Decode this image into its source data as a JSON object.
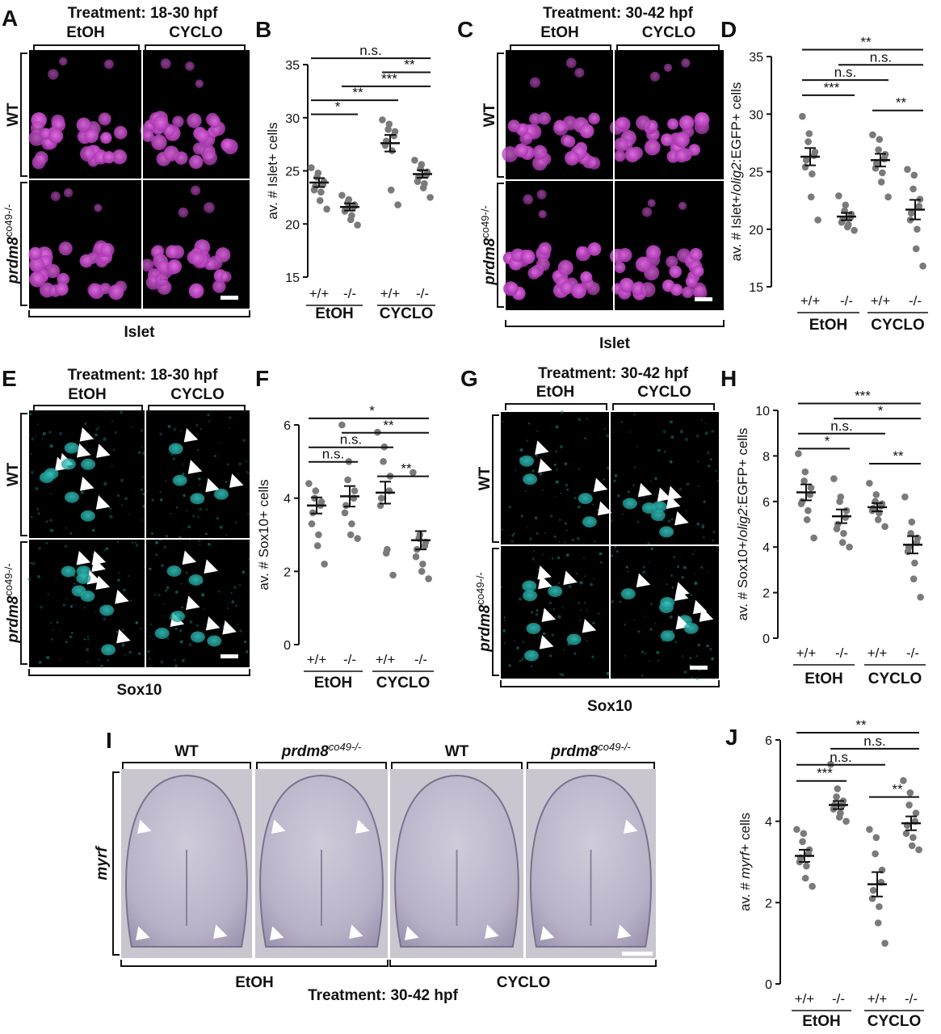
{
  "panel_letters": [
    "A",
    "B",
    "C",
    "D",
    "E",
    "F",
    "G",
    "H",
    "I",
    "J"
  ],
  "imaging": {
    "A": {
      "treatment": "Treatment: 18-30 hpf",
      "col1": "EtOH",
      "col2": "CYCLO",
      "row1": "WT",
      "row2": "prdm8",
      "row2_sup": "co49-/-",
      "stain": "Islet"
    },
    "C": {
      "treatment": "Treatment: 30-42 hpf",
      "col1": "EtOH",
      "col2": "CYCLO",
      "row1": "WT",
      "row2": "prdm8",
      "row2_sup": "co49-/-",
      "stain": "Islet"
    },
    "E": {
      "treatment": "Treatment: 18-30 hpf",
      "col1": "EtOH",
      "col2": "CYCLO",
      "row1": "WT",
      "row2": "prdm8",
      "row2_sup": "co49-/-",
      "stain": "Sox10"
    },
    "G": {
      "treatment": "Treatment: 30-42 hpf",
      "col1": "EtOH",
      "col2": "CYCLO",
      "row1": "WT",
      "row2": "prdm8",
      "row2_sup": "co49-/-",
      "stain": "Sox10"
    },
    "I": {
      "col_labels": [
        "WT",
        "prdm8",
        "WT",
        "prdm8"
      ],
      "col_sup": "co49-/-",
      "row_label": "myrf",
      "group1": "EtOH",
      "group2": "CYCLO",
      "treatment": "Treatment: 30-42 hpf"
    }
  },
  "colors": {
    "islet": "#c23fc8",
    "sox10": "#27b8b4",
    "dot": "#7a7a7a",
    "bg": "#000000"
  },
  "chart_data": [
    {
      "panel": "B",
      "type": "scatter",
      "ylabel": "av. # Islet+ cells",
      "ylim": [
        15,
        35
      ],
      "yticks": [
        15,
        20,
        25,
        30,
        35
      ],
      "categories": [
        "+/+",
        "-/-",
        "+/+",
        "-/-"
      ],
      "groups": [
        "EtOH",
        "CYCLO"
      ],
      "series": [
        {
          "values": [
            25.3,
            24.8,
            24.4,
            24.0,
            23.7,
            23.5,
            23.2,
            23.0,
            22.2,
            21.4
          ]
        },
        {
          "values": [
            22.7,
            22.3,
            22.0,
            21.8,
            21.6,
            21.4,
            21.2,
            20.8,
            20.4,
            19.9
          ]
        },
        {
          "values": [
            29.8,
            29.4,
            28.9,
            28.7,
            28.3,
            27.8,
            27.4,
            26.9,
            23.2,
            21.8
          ]
        },
        {
          "values": [
            26.0,
            25.6,
            25.2,
            24.9,
            24.6,
            24.4,
            24.0,
            23.8,
            23.4,
            22.5
          ]
        }
      ],
      "means": [
        23.9,
        21.6,
        27.6,
        24.7
      ],
      "sem": [
        0.42,
        0.34,
        0.78,
        0.36
      ],
      "significance": [
        {
          "pair": [
            0,
            3
          ],
          "label": "n.s."
        },
        {
          "pair": [
            2,
            3
          ],
          "label": "**"
        },
        {
          "pair": [
            1,
            3
          ],
          "label": "***"
        },
        {
          "pair": [
            0,
            2
          ],
          "label": "**"
        },
        {
          "pair": [
            0,
            1
          ],
          "label": "*"
        }
      ]
    },
    {
      "panel": "D",
      "type": "scatter",
      "ylabel": "av. # Islet+/olig2:EGFP+ cells",
      "ylim": [
        15,
        35
      ],
      "yticks": [
        15,
        20,
        25,
        30,
        35
      ],
      "categories": [
        "+/+",
        "-/-",
        "+/+",
        "-/-"
      ],
      "groups": [
        "EtOH",
        "CYCLO"
      ],
      "series": [
        {
          "values": [
            29.8,
            28.3,
            27.6,
            26.7,
            26.4,
            26.0,
            25.4,
            24.8,
            22.8,
            20.8
          ]
        },
        {
          "values": [
            22.9,
            22.1,
            21.6,
            21.3,
            21.0,
            20.8,
            20.6,
            20.4,
            20.2,
            19.9
          ]
        },
        {
          "values": [
            28.2,
            27.8,
            26.9,
            26.5,
            26.1,
            25.7,
            25.3,
            24.9,
            24.1,
            22.8
          ]
        },
        {
          "values": [
            25.2,
            24.7,
            23.5,
            22.6,
            22.0,
            21.4,
            20.8,
            20.0,
            18.3,
            16.8
          ]
        }
      ],
      "means": [
        26.3,
        21.1,
        26.0,
        21.7
      ],
      "sem": [
        0.75,
        0.32,
        0.55,
        0.85
      ],
      "significance": [
        {
          "pair": [
            0,
            3
          ],
          "label": "**"
        },
        {
          "pair": [
            1,
            3
          ],
          "label": "n.s."
        },
        {
          "pair": [
            0,
            2
          ],
          "label": "n.s."
        },
        {
          "pair": [
            0,
            1
          ],
          "label": "***"
        },
        {
          "pair": [
            2,
            3
          ],
          "label": "**"
        }
      ]
    },
    {
      "panel": "F",
      "type": "scatter",
      "ylabel": "av. # Sox10+ cells",
      "ylim": [
        0,
        6
      ],
      "yticks": [
        0,
        2,
        4,
        6
      ],
      "categories": [
        "+/+",
        "-/-",
        "+/+",
        "-/-"
      ],
      "groups": [
        "EtOH",
        "CYCLO"
      ],
      "series": [
        {
          "values": [
            4.4,
            4.2,
            4.0,
            3.9,
            3.8,
            3.6,
            3.3,
            3.0,
            2.7,
            2.2
          ]
        },
        {
          "values": [
            6.0,
            5.0,
            4.5,
            4.2,
            4.0,
            3.8,
            3.6,
            3.3,
            3.0,
            2.9
          ]
        },
        {
          "values": [
            5.8,
            5.4,
            5.0,
            4.6,
            4.2,
            4.0,
            3.8,
            2.6,
            2.5,
            1.9
          ]
        },
        {
          "values": [
            4.7,
            3.0,
            2.9,
            2.8,
            2.7,
            2.6,
            2.4,
            2.2,
            2.0,
            1.8
          ]
        }
      ],
      "means": [
        3.8,
        4.05,
        4.15,
        2.85
      ],
      "sem": [
        0.22,
        0.28,
        0.3,
        0.25
      ],
      "significance": [
        {
          "pair": [
            0,
            3
          ],
          "label": "*"
        },
        {
          "pair": [
            1,
            3
          ],
          "label": "**"
        },
        {
          "pair": [
            0,
            2
          ],
          "label": "n.s."
        },
        {
          "pair": [
            0,
            1
          ],
          "label": "n.s."
        },
        {
          "pair": [
            2,
            3
          ],
          "label": "**"
        }
      ]
    },
    {
      "panel": "H",
      "type": "scatter",
      "ylabel": "av. # Sox10+/olig2:EGFP+ cells",
      "ylim": [
        0,
        10
      ],
      "yticks": [
        0,
        2,
        4,
        6,
        8,
        10
      ],
      "categories": [
        "+/+",
        "-/-",
        "+/+",
        "-/-"
      ],
      "groups": [
        "EtOH",
        "CYCLO"
      ],
      "series": [
        {
          "values": [
            8.1,
            7.3,
            6.9,
            6.6,
            6.3,
            6.0,
            5.9,
            5.6,
            5.2,
            4.4
          ]
        },
        {
          "values": [
            7.0,
            6.2,
            6.0,
            5.6,
            5.3,
            5.0,
            4.8,
            4.6,
            4.2,
            4.0
          ]
        },
        {
          "values": [
            6.8,
            6.3,
            6.0,
            5.9,
            5.8,
            5.7,
            5.6,
            5.5,
            5.2,
            4.9
          ]
        },
        {
          "values": [
            6.2,
            5.1,
            4.6,
            4.4,
            4.2,
            4.0,
            3.8,
            3.3,
            2.6,
            1.8
          ]
        }
      ],
      "means": [
        6.4,
        5.35,
        5.75,
        4.1
      ],
      "sem": [
        0.35,
        0.3,
        0.18,
        0.38
      ],
      "significance": [
        {
          "pair": [
            0,
            3
          ],
          "label": "***"
        },
        {
          "pair": [
            1,
            3
          ],
          "label": "*"
        },
        {
          "pair": [
            0,
            2
          ],
          "label": "n.s."
        },
        {
          "pair": [
            0,
            1
          ],
          "label": "*"
        },
        {
          "pair": [
            2,
            3
          ],
          "label": "**"
        }
      ]
    },
    {
      "panel": "J",
      "type": "scatter",
      "ylabel": "av. # myrf+ cells",
      "ylim": [
        0,
        6
      ],
      "yticks": [
        0,
        2,
        4,
        6
      ],
      "categories": [
        "+/+",
        "-/-",
        "+/+",
        "-/-"
      ],
      "groups": [
        "EtOH",
        "CYCLO"
      ],
      "series": [
        {
          "values": [
            3.8,
            3.7,
            3.5,
            3.3,
            3.2,
            3.1,
            3.0,
            2.9,
            2.6,
            2.4
          ]
        },
        {
          "values": [
            5.4,
            4.8,
            4.6,
            4.5,
            4.4,
            4.4,
            4.3,
            4.2,
            4.1,
            4.0
          ]
        },
        {
          "values": [
            3.8,
            3.6,
            3.2,
            2.8,
            2.5,
            2.3,
            2.1,
            1.9,
            1.5,
            1.0
          ]
        },
        {
          "values": [
            5.0,
            4.7,
            4.4,
            4.2,
            4.0,
            3.9,
            3.7,
            3.6,
            3.4,
            3.3
          ]
        }
      ],
      "means": [
        3.15,
        4.4,
        2.45,
        3.95
      ],
      "sem": [
        0.15,
        0.1,
        0.3,
        0.17
      ],
      "significance": [
        {
          "pair": [
            0,
            3
          ],
          "label": "**"
        },
        {
          "pair": [
            1,
            3
          ],
          "label": "n.s."
        },
        {
          "pair": [
            0,
            2
          ],
          "label": "n.s."
        },
        {
          "pair": [
            0,
            1
          ],
          "label": "***"
        },
        {
          "pair": [
            2,
            3
          ],
          "label": "**"
        }
      ]
    }
  ]
}
